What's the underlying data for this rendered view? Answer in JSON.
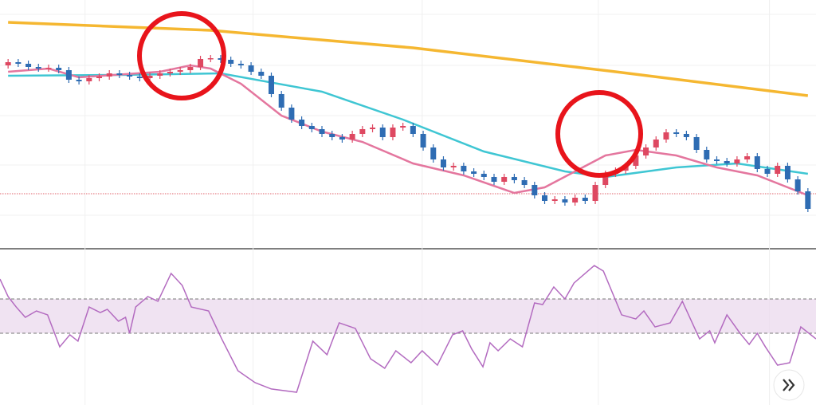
{
  "chart_data": [
    {
      "type": "candlestick",
      "xlim": [
        -0.8,
        79.8
      ],
      "ylim": [
        0,
        310
      ],
      "xticks": [
        7.6,
        24.2,
        40.9,
        58.3,
        75.2
      ],
      "yticks": [
        40,
        103,
        165,
        228,
        292
      ],
      "grid": true,
      "up_color": "#de4861",
      "down_color": "#2e6cb3",
      "candles": [
        [
          228,
          236,
          224,
          232
        ],
        [
          232,
          236,
          226,
          230
        ],
        [
          230,
          234,
          222,
          226
        ],
        [
          226,
          230,
          220,
          224
        ],
        [
          224,
          229,
          220,
          225
        ],
        [
          225,
          229,
          218,
          222
        ],
        [
          222,
          226,
          206,
          210
        ],
        [
          210,
          214,
          204,
          208
        ],
        [
          208,
          216,
          204,
          212
        ],
        [
          212,
          218,
          208,
          214
        ],
        [
          214,
          222,
          210,
          218
        ],
        [
          218,
          222,
          212,
          216
        ],
        [
          216,
          220,
          210,
          214
        ],
        [
          214,
          218,
          208,
          212
        ],
        [
          212,
          219,
          208,
          215
        ],
        [
          215,
          222,
          211,
          218
        ],
        [
          218,
          224,
          214,
          220
        ],
        [
          220,
          226,
          216,
          222
        ],
        [
          222,
          230,
          218,
          226
        ],
        [
          226,
          240,
          222,
          236
        ],
        [
          236,
          241,
          232,
          237
        ],
        [
          237,
          241,
          231,
          235
        ],
        [
          235,
          239,
          226,
          230
        ],
        [
          230,
          234,
          224,
          228
        ],
        [
          228,
          232,
          216,
          220
        ],
        [
          220,
          224,
          211,
          215
        ],
        [
          215,
          219,
          188,
          192
        ],
        [
          192,
          196,
          171,
          175
        ],
        [
          175,
          179,
          156,
          160
        ],
        [
          160,
          164,
          148,
          152
        ],
        [
          152,
          156,
          144,
          148
        ],
        [
          148,
          152,
          138,
          142
        ],
        [
          142,
          146,
          134,
          138
        ],
        [
          138,
          142,
          131,
          135
        ],
        [
          135,
          146,
          131,
          142
        ],
        [
          142,
          152,
          138,
          148
        ],
        [
          148,
          154,
          144,
          150
        ],
        [
          150,
          154,
          134,
          138
        ],
        [
          138,
          154,
          134,
          150
        ],
        [
          150,
          156,
          146,
          152
        ],
        [
          152,
          156,
          138,
          142
        ],
        [
          142,
          146,
          121,
          125
        ],
        [
          125,
          129,
          106,
          110
        ],
        [
          110,
          114,
          96,
          100
        ],
        [
          100,
          106,
          96,
          102
        ],
        [
          102,
          106,
          91,
          95
        ],
        [
          95,
          99,
          88,
          92
        ],
        [
          92,
          96,
          84,
          88
        ],
        [
          88,
          92,
          78,
          82
        ],
        [
          82,
          92,
          78,
          88
        ],
        [
          88,
          92,
          80,
          84
        ],
        [
          84,
          88,
          74,
          78
        ],
        [
          78,
          82,
          61,
          65
        ],
        [
          65,
          69,
          54,
          58
        ],
        [
          58,
          64,
          54,
          60
        ],
        [
          60,
          64,
          52,
          56
        ],
        [
          56,
          66,
          52,
          62
        ],
        [
          62,
          66,
          54,
          58
        ],
        [
          58,
          82,
          54,
          78
        ],
        [
          78,
          96,
          74,
          92
        ],
        [
          92,
          100,
          88,
          96
        ],
        [
          96,
          106,
          92,
          102
        ],
        [
          102,
          119,
          98,
          115
        ],
        [
          115,
          129,
          111,
          125
        ],
        [
          125,
          139,
          121,
          135
        ],
        [
          135,
          148,
          131,
          144
        ],
        [
          144,
          148,
          138,
          142
        ],
        [
          142,
          146,
          134,
          138
        ],
        [
          138,
          142,
          118,
          122
        ],
        [
          122,
          126,
          106,
          110
        ],
        [
          110,
          114,
          104,
          108
        ],
        [
          108,
          112,
          101,
          105
        ],
        [
          105,
          114,
          101,
          110
        ],
        [
          110,
          118,
          106,
          114
        ],
        [
          114,
          118,
          94,
          98
        ],
        [
          98,
          102,
          88,
          92
        ],
        [
          92,
          106,
          88,
          102
        ],
        [
          102,
          106,
          81,
          85
        ],
        [
          85,
          89,
          66,
          70
        ],
        [
          70,
          74,
          44,
          48
        ]
      ],
      "ref_line": 67,
      "ref_color": "#e0606a",
      "lines": [
        {
          "color": "#f5b731",
          "x": [
            0,
            20,
            40,
            60,
            79
          ],
          "values": [
            282,
            272,
            250,
            220,
            190
          ]
        },
        {
          "color": "#3fc6d3",
          "x": [
            0,
            11,
            21,
            31,
            39,
            47,
            55,
            59,
            66,
            72,
            79
          ],
          "values": [
            215,
            216,
            218,
            195,
            160,
            120,
            95,
            88,
            100,
            105,
            92
          ]
        },
        {
          "color": "#e4769e",
          "x": [
            0,
            4,
            7,
            15,
            18,
            20,
            23,
            27,
            31,
            35,
            40,
            45,
            50,
            53,
            56,
            59,
            62,
            66,
            70,
            74,
            79
          ],
          "values": [
            220,
            224,
            213,
            220,
            228,
            224,
            205,
            165,
            145,
            132,
            105,
            90,
            68,
            75,
            95,
            115,
            122,
            115,
            100,
            90,
            65
          ]
        }
      ]
    },
    {
      "type": "line",
      "xlim": [
        -0.8,
        79.8
      ],
      "ylim": [
        0,
        100
      ],
      "band": [
        48.2,
        73.5
      ],
      "band_color": "#ecdcef",
      "color": "#b36bc0",
      "x": [
        -0.8,
        0,
        0.8,
        1.7,
        2.8,
        3.9,
        5.1,
        6.1,
        6.9,
        8.0,
        9.1,
        9.8,
        10.9,
        11.6,
        12.0,
        12.6,
        13.8,
        14.8,
        16.1,
        17.2,
        18.1,
        19.8,
        21.1,
        22.7,
        24.4,
        26.0,
        28.5,
        30.1,
        31.5,
        32.7,
        34.3,
        35.8,
        37.2,
        38.3,
        39.8,
        40.9,
        42.4,
        43.9,
        44.9,
        45.8,
        46.9,
        47.6,
        48.4,
        49.6,
        50.8,
        52.0,
        52.8,
        53.9,
        55.0,
        55.9,
        57.9,
        58.8,
        60.6,
        62.0,
        62.8,
        63.9,
        65.4,
        66.6,
        68.3,
        69.3,
        69.8,
        71.0,
        72.3,
        73.2,
        74.0,
        74.8,
        76.0,
        77.2,
        78.3,
        79.8
      ],
      "values": [
        88.2,
        75.3,
        67.6,
        60,
        64.7,
        61.8,
        38.2,
        47.1,
        42.4,
        67.6,
        63.5,
        65.9,
        57.1,
        60,
        48.2,
        67.6,
        75.3,
        71.8,
        92.4,
        83.5,
        67.6,
        64.7,
        44.1,
        20.6,
        11.8,
        7.1,
        4.7,
        42.4,
        32.4,
        55.9,
        51.8,
        29.4,
        22.4,
        35.3,
        26.5,
        35.3,
        24.7,
        47.1,
        50,
        36.5,
        23.5,
        41.2,
        35.3,
        44.1,
        38.2,
        70.6,
        69.4,
        82.4,
        73.5,
        85.3,
        98.2,
        94.1,
        61.8,
        58.8,
        64.7,
        52.9,
        55.9,
        71.8,
        44.1,
        50,
        41.2,
        61.8,
        48.2,
        40,
        48.2,
        38.2,
        24.7,
        26.5,
        52.9,
        44.1
      ]
    }
  ]
}
